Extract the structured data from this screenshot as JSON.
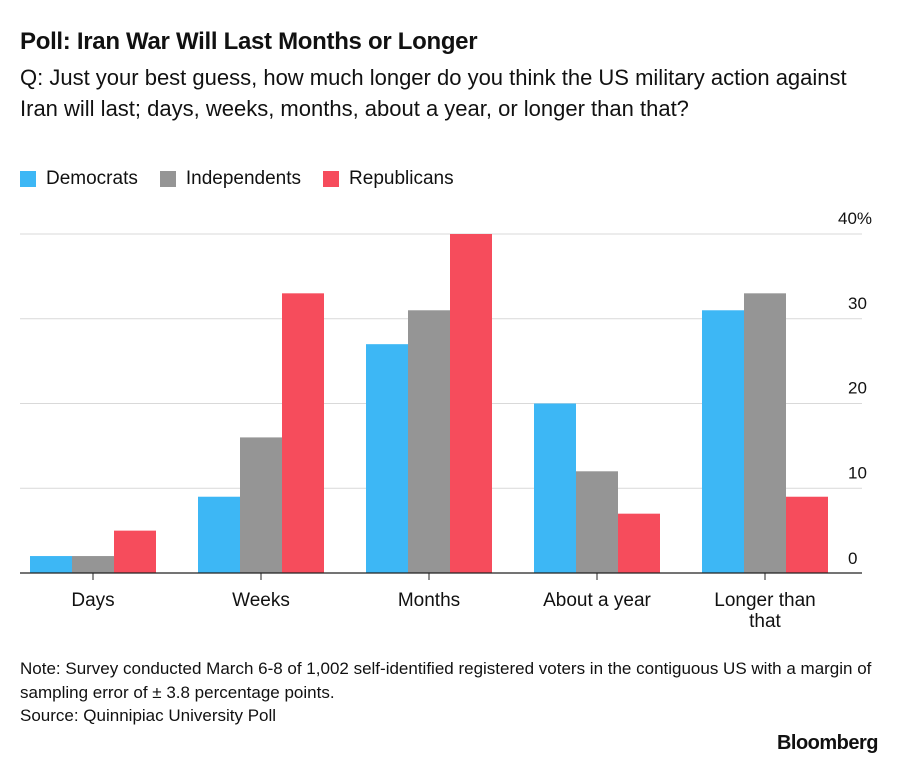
{
  "header": {
    "title": "Poll: Iran War Will Last Months or Longer",
    "subtitle": "Q: Just your best guess, how much longer do you think the US military action against Iran will last; days, weeks, months, about a year, or longer than that?"
  },
  "footer": {
    "note": "Note: Survey conducted March 6-8 of 1,002 self-identified registered voters in the contiguous US with a margin of sampling error of ± 3.8 percentage points.",
    "source": "Source: Quinnipiac University Poll",
    "brand": "Bloomberg"
  },
  "chart_data": {
    "type": "bar",
    "title": "Poll: Iran War Will Last Months or Longer",
    "categories": [
      "Days",
      "Weeks",
      "Months",
      "About a year",
      "Longer than that"
    ],
    "series": [
      {
        "name": "Democrats",
        "color": "#3db7f5",
        "values": [
          2,
          9,
          27,
          20,
          31
        ]
      },
      {
        "name": "Independents",
        "color": "#959595",
        "values": [
          2,
          16,
          31,
          12,
          33
        ]
      },
      {
        "name": "Republicans",
        "color": "#f64c5c",
        "values": [
          5,
          33,
          40,
          7,
          9
        ]
      }
    ],
    "ylim": [
      0,
      40
    ],
    "yticks": [
      "0",
      "10",
      "20",
      "30",
      "40%"
    ],
    "ytick_values": [
      0,
      10,
      20,
      30,
      40
    ],
    "grid": true,
    "legend": "top-left"
  }
}
